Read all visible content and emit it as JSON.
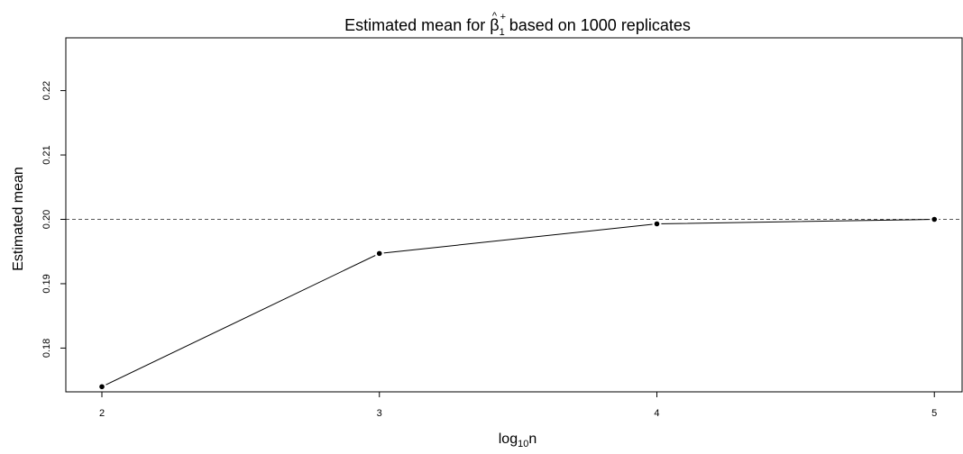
{
  "chart_data": {
    "type": "line",
    "title": {
      "prefix": "Estimated mean for ",
      "symbol": "β",
      "hat": "^",
      "superscript": "+",
      "subscript": "1",
      "suffix": " based on 1000 replicates"
    },
    "xlabel": {
      "base": "log",
      "subscript": "10",
      "suffix": "n"
    },
    "ylabel": "Estimated mean",
    "x": [
      2,
      3,
      4,
      5
    ],
    "series": [
      {
        "values": [
          0.174,
          0.1947,
          0.1993,
          0.2
        ]
      }
    ],
    "reference_line": {
      "y": 0.2,
      "style": "dashed"
    },
    "xticks": [
      2,
      3,
      4,
      5
    ],
    "xtick_labels": [
      "2",
      "3",
      "4",
      "5"
    ],
    "yticks": [
      0.18,
      0.19,
      0.2,
      0.21,
      0.22
    ],
    "ytick_labels": [
      "0.18",
      "0.19",
      "0.20",
      "0.21",
      "0.22"
    ],
    "xlim": [
      1.87,
      5.1
    ],
    "ylim": [
      0.1732,
      0.2282
    ],
    "grid": false,
    "colors": {
      "line": "#000000",
      "points": "#000000",
      "reference": "#555555"
    }
  }
}
